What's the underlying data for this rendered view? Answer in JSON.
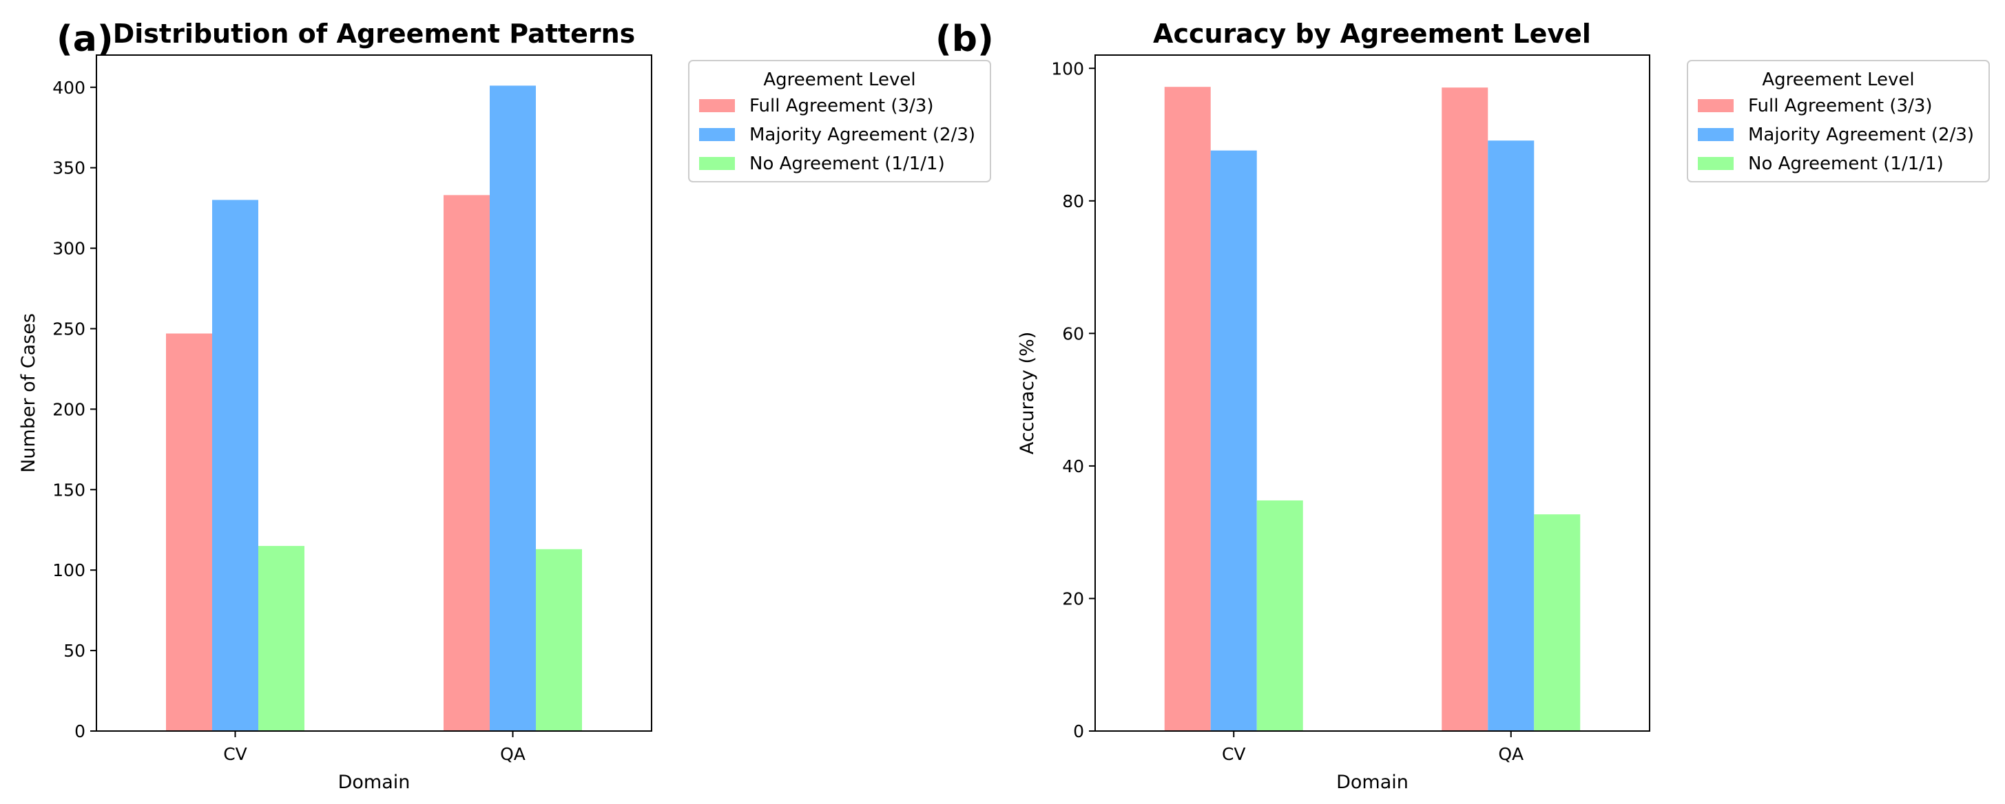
{
  "colors": {
    "full": "#ff9999",
    "majority": "#66b3ff",
    "none": "#99ff99",
    "axis": "#000000",
    "legend_border": "#cccccc"
  },
  "chart_data": [
    {
      "panel": "(a)",
      "type": "bar",
      "title": "Distribution of Agreement Patterns",
      "xlabel": "Domain",
      "ylabel": "Number of Cases",
      "categories": [
        "CV",
        "QA"
      ],
      "ylim": [
        0,
        420
      ],
      "yticks": [
        0,
        50,
        100,
        150,
        200,
        250,
        300,
        350,
        400
      ],
      "legend_title": "Agreement Level",
      "legend_position": "outside-top-right",
      "series": [
        {
          "name": "Full Agreement (3/3)",
          "color_key": "full",
          "values": [
            247,
            333
          ]
        },
        {
          "name": "Majority Agreement (2/3)",
          "color_key": "majority",
          "values": [
            330,
            401
          ]
        },
        {
          "name": "No Agreement (1/1/1)",
          "color_key": "none",
          "values": [
            115,
            113
          ]
        }
      ]
    },
    {
      "panel": "(b)",
      "type": "bar",
      "title": "Accuracy by Agreement Level",
      "xlabel": "Domain",
      "ylabel": "Accuracy (%)",
      "categories": [
        "CV",
        "QA"
      ],
      "ylim": [
        0,
        102
      ],
      "yticks": [
        0,
        20,
        40,
        60,
        80,
        100
      ],
      "legend_title": "Agreement Level",
      "legend_position": "outside-top-right",
      "series": [
        {
          "name": "Full Agreement (3/3)",
          "color_key": "full",
          "values": [
            97.2,
            97.1
          ]
        },
        {
          "name": "Majority Agreement (2/3)",
          "color_key": "majority",
          "values": [
            87.6,
            89.1
          ]
        },
        {
          "name": "No Agreement (1/1/1)",
          "color_key": "none",
          "values": [
            34.8,
            32.7
          ]
        }
      ]
    }
  ]
}
